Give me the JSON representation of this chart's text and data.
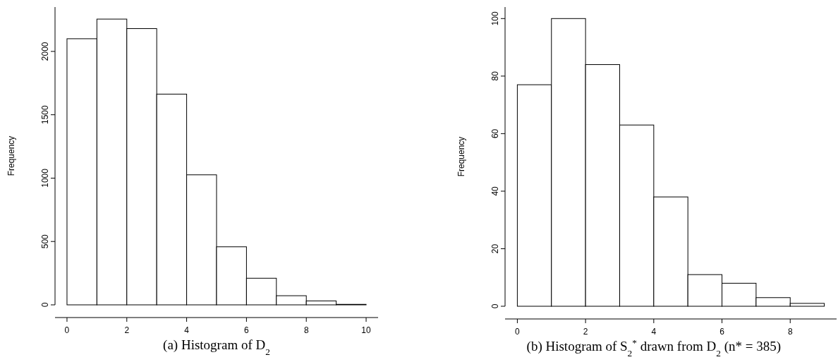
{
  "chart_data": [
    {
      "type": "histogram",
      "title": "(a) Histogram of D$_{2}$",
      "ylabel": "Frequency",
      "bins": [
        0,
        1,
        2,
        3,
        4,
        5,
        6,
        7,
        8,
        9,
        10
      ],
      "values": [
        2100,
        2255,
        2180,
        1663,
        1026,
        458,
        210,
        72,
        31,
        4
      ],
      "color": "#ffffff",
      "xlim": [
        -0.4,
        10.4
      ],
      "ylim": [
        0,
        2350
      ],
      "xticks": [
        0,
        2,
        4,
        6,
        8,
        10
      ],
      "yticks": [
        0,
        500,
        1000,
        1500,
        2000
      ],
      "grid": false
    },
    {
      "type": "histogram",
      "title": "(b) Histogram of S$_{2}$$^{*}$ drawn from D$_{2}$ (n* = 385)",
      "ylabel": "Frequency",
      "bins": [
        0,
        1,
        2,
        3,
        4,
        5,
        6,
        7,
        8,
        9
      ],
      "values": [
        77,
        100,
        84,
        63,
        38,
        11,
        8,
        3,
        1
      ],
      "color": "#ffffff",
      "xlim": [
        -0.36,
        9.36
      ],
      "ylim": [
        0,
        104
      ],
      "xticks": [
        0,
        2,
        4,
        6,
        8
      ],
      "yticks": [
        0,
        20,
        40,
        60,
        80,
        100
      ],
      "grid": false
    }
  ]
}
